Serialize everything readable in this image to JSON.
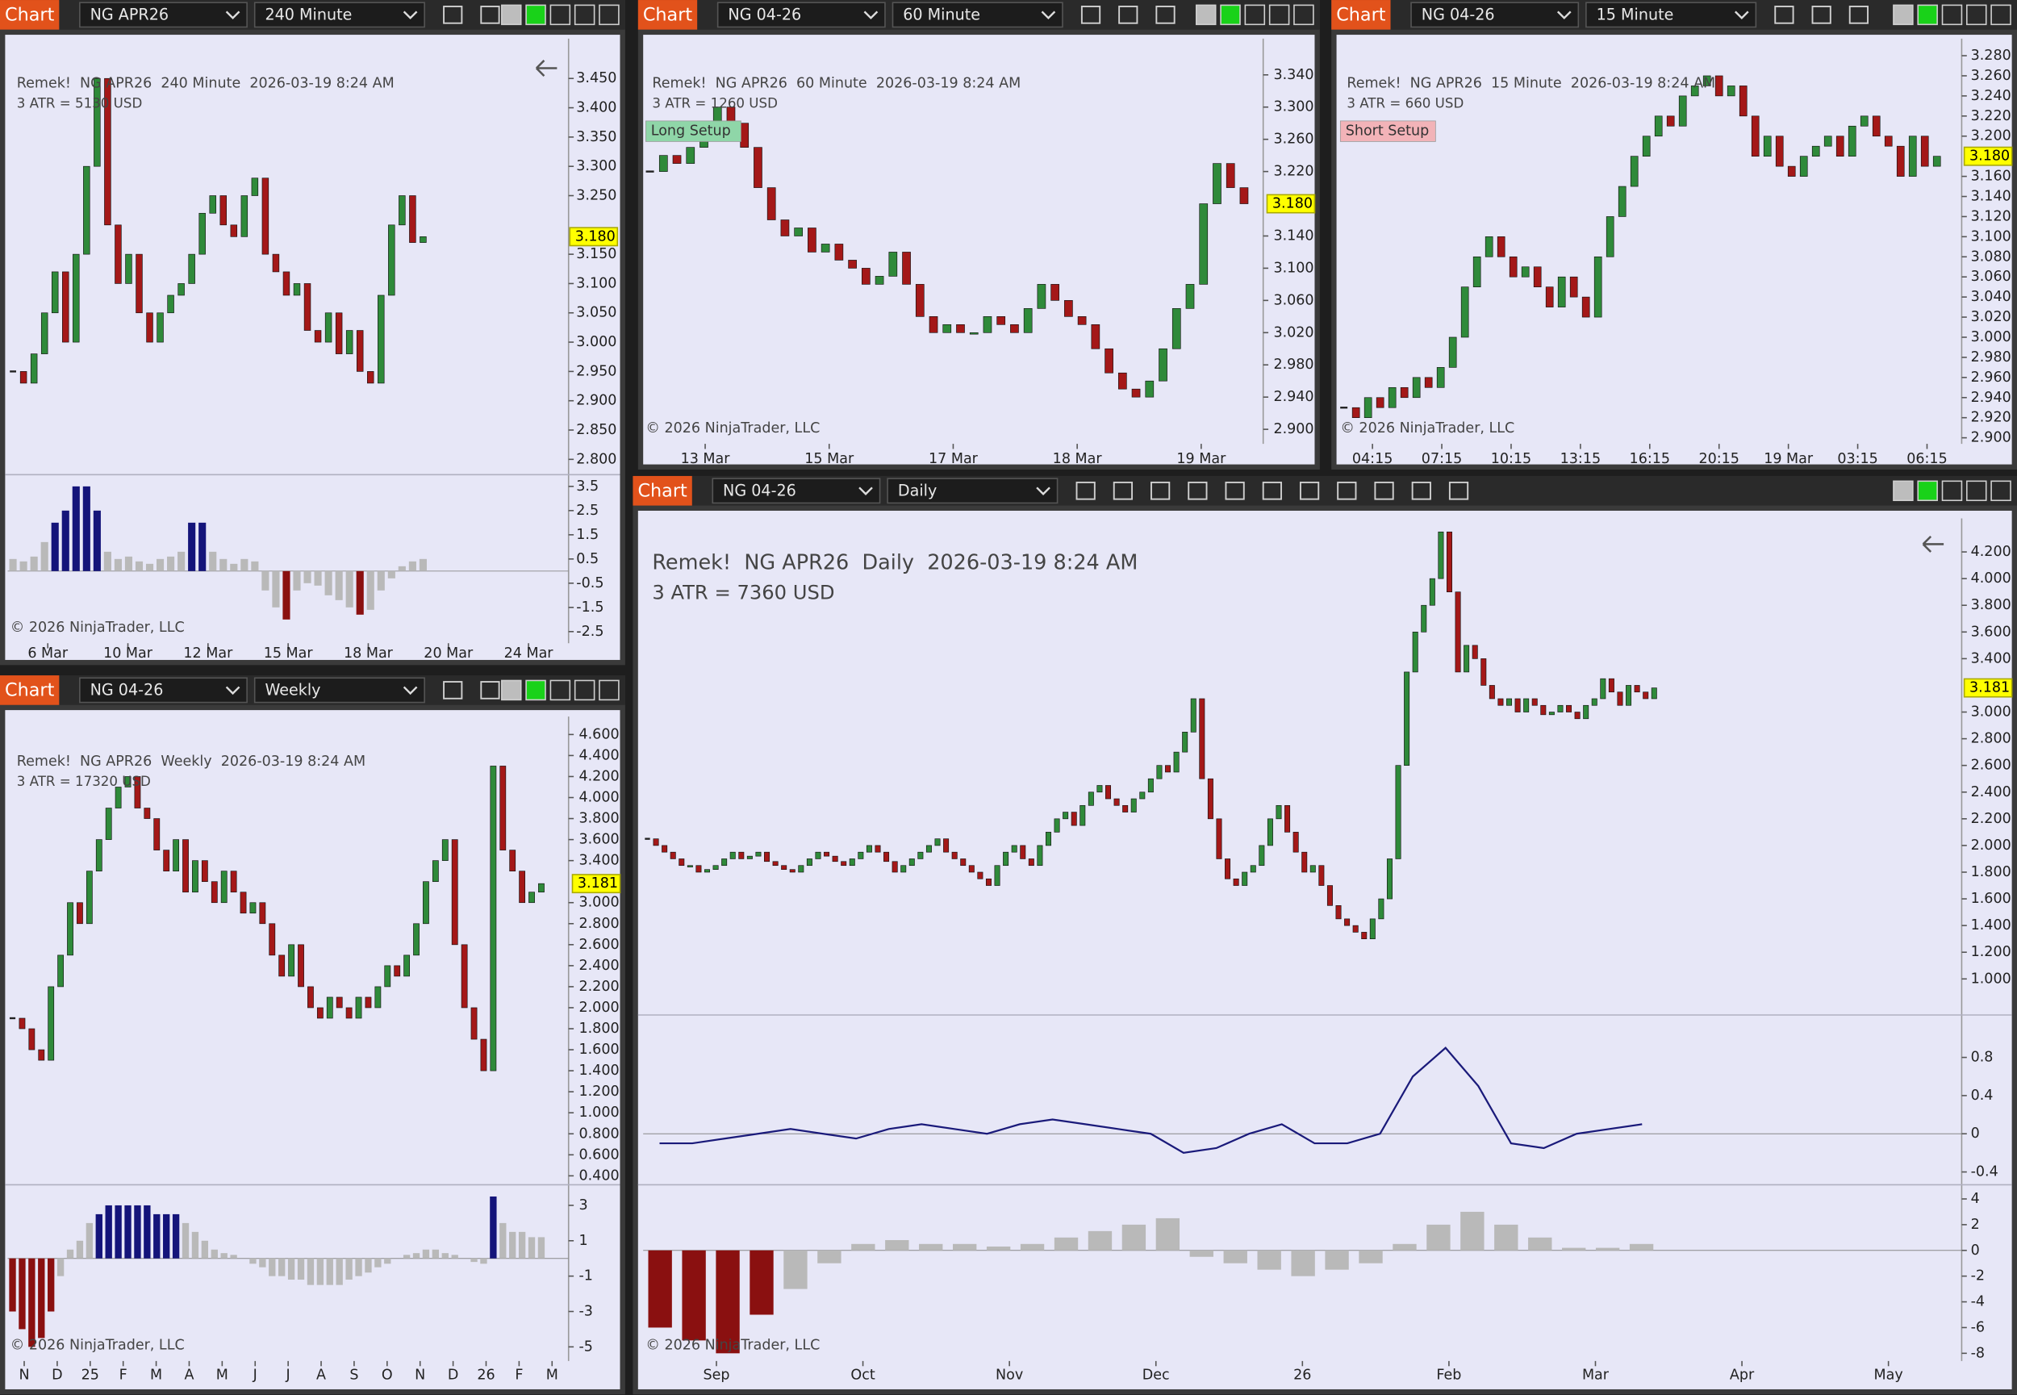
{
  "panels": [
    {
      "toolbar": {
        "label": "Chart",
        "instrument": "NG APR26",
        "interval": "240 Minute"
      },
      "header": "Remek!  NG APR26  240 Minute  2026-03-19 8:24 AM",
      "atr": "3 ATR = 5130 USD",
      "ylim": [
        2.776,
        3.518
      ],
      "yticks": [
        {
          "value": 3.45,
          "label": "3.450"
        },
        {
          "value": 3.4,
          "label": "3.400"
        },
        {
          "value": 3.35,
          "label": "3.350"
        },
        {
          "value": 3.3,
          "label": "3.300"
        },
        {
          "value": 3.25,
          "label": "3.250"
        },
        {
          "value": 3.15,
          "label": "3.150"
        },
        {
          "value": 3.1,
          "label": "3.100"
        },
        {
          "value": 3.05,
          "label": "3.050"
        },
        {
          "value": 3.0,
          "label": "3.000"
        },
        {
          "value": 2.95,
          "label": "2.950"
        },
        {
          "value": 2.9,
          "label": "2.900"
        },
        {
          "value": 2.85,
          "label": "2.850"
        },
        {
          "value": 2.8,
          "label": "2.800"
        }
      ],
      "last": {
        "value": 3.18,
        "label": "3.180"
      },
      "closes": [
        2.95,
        2.93,
        2.98,
        3.05,
        3.12,
        3.0,
        3.15,
        3.3,
        3.45,
        3.2,
        3.1,
        3.15,
        3.05,
        3.0,
        3.05,
        3.08,
        3.1,
        3.15,
        3.22,
        3.25,
        3.2,
        3.18,
        3.25,
        3.28,
        3.15,
        3.12,
        3.08,
        3.1,
        3.02,
        3.0,
        3.05,
        2.98,
        3.02,
        2.95,
        2.93,
        3.08,
        3.2,
        3.25,
        3.17,
        3.18
      ],
      "subs": [
        {
          "type": "hist",
          "ylim": [
            -2.98,
            3.93
          ],
          "yticks": [
            3.5,
            2.5,
            1.5,
            0.5,
            -0.5,
            -1.5,
            -2.5
          ],
          "values": [
            0.5,
            0.4,
            0.6,
            1.2,
            2.0,
            2.5,
            3.5,
            3.5,
            2.5,
            0.8,
            0.5,
            0.6,
            0.4,
            0.3,
            0.5,
            0.6,
            0.8,
            2.0,
            2.0,
            0.8,
            0.5,
            0.3,
            0.5,
            0.4,
            -0.8,
            -1.5,
            -2.0,
            -0.8,
            -0.5,
            -0.6,
            -1.0,
            -1.2,
            -1.5,
            -1.8,
            -1.6,
            -0.8,
            -0.3,
            0.2,
            0.4,
            0.5
          ]
        }
      ],
      "xlabels": [
        "6 Mar",
        "10 Mar",
        "12 Mar",
        "15 Mar",
        "18 Mar",
        "20 Mar",
        "24 Mar"
      ],
      "copyright": "© 2026 NinjaTrader, LLC"
    },
    {
      "toolbar": {
        "label": "Chart",
        "instrument": "NG 04-26",
        "interval": "60 Minute"
      },
      "header": "Remek!  NG APR26  60 Minute  2026-03-19 8:24 AM",
      "atr": "3 ATR = 1260 USD",
      "setup": {
        "text": "Long Setup",
        "color": "#8fd6a8"
      },
      "ylim": [
        2.882,
        3.385
      ],
      "yticks": [
        {
          "value": 3.34,
          "label": "3.340"
        },
        {
          "value": 3.3,
          "label": "3.300"
        },
        {
          "value": 3.26,
          "label": "3.260"
        },
        {
          "value": 3.22,
          "label": "3.220"
        },
        {
          "value": 3.14,
          "label": "3.140"
        },
        {
          "value": 3.1,
          "label": "3.100"
        },
        {
          "value": 3.06,
          "label": "3.060"
        },
        {
          "value": 3.02,
          "label": "3.020"
        },
        {
          "value": 2.98,
          "label": "2.980"
        },
        {
          "value": 2.94,
          "label": "2.940"
        },
        {
          "value": 2.9,
          "label": "2.900"
        }
      ],
      "last": {
        "value": 3.18,
        "label": "3.180"
      },
      "closes": [
        3.22,
        3.24,
        3.23,
        3.25,
        3.27,
        3.3,
        3.28,
        3.25,
        3.2,
        3.16,
        3.14,
        3.15,
        3.12,
        3.13,
        3.11,
        3.1,
        3.08,
        3.09,
        3.12,
        3.08,
        3.04,
        3.02,
        3.03,
        3.02,
        3.02,
        3.04,
        3.03,
        3.02,
        3.05,
        3.08,
        3.06,
        3.04,
        3.03,
        3.0,
        2.97,
        2.95,
        2.94,
        2.96,
        3.0,
        3.05,
        3.08,
        3.18,
        3.23,
        3.2,
        3.18
      ],
      "subs": [],
      "xlabels": [
        "13 Mar",
        "15 Mar",
        "17 Mar",
        "18 Mar",
        "19 Mar"
      ],
      "copyright": "© 2026 NinjaTrader, LLC"
    },
    {
      "toolbar": {
        "label": "Chart",
        "instrument": "NG 04-26",
        "interval": "15 Minute"
      },
      "header": "Remek!  NG APR26  15 Minute  2026-03-19 8:24 AM",
      "atr": "3 ATR = 660 USD",
      "setup": {
        "text": "Short Setup",
        "color": "#f2b3b8"
      },
      "ylim": [
        2.894,
        3.297
      ],
      "yticks": [
        {
          "value": 3.28,
          "label": "3.280"
        },
        {
          "value": 3.26,
          "label": "3.260"
        },
        {
          "value": 3.24,
          "label": "3.240"
        },
        {
          "value": 3.22,
          "label": "3.220"
        },
        {
          "value": 3.2,
          "label": "3.200"
        },
        {
          "value": 3.16,
          "label": "3.160"
        },
        {
          "value": 3.14,
          "label": "3.140"
        },
        {
          "value": 3.12,
          "label": "3.120"
        },
        {
          "value": 3.1,
          "label": "3.100"
        },
        {
          "value": 3.08,
          "label": "3.080"
        },
        {
          "value": 3.06,
          "label": "3.060"
        },
        {
          "value": 3.04,
          "label": "3.040"
        },
        {
          "value": 3.02,
          "label": "3.020"
        },
        {
          "value": 3.0,
          "label": "3.000"
        },
        {
          "value": 2.98,
          "label": "2.980"
        },
        {
          "value": 2.96,
          "label": "2.960"
        },
        {
          "value": 2.94,
          "label": "2.940"
        },
        {
          "value": 2.92,
          "label": "2.920"
        },
        {
          "value": 2.9,
          "label": "2.900"
        }
      ],
      "last": {
        "value": 3.18,
        "label": "3.180"
      },
      "closes": [
        2.93,
        2.92,
        2.94,
        2.93,
        2.95,
        2.94,
        2.96,
        2.95,
        2.97,
        3.0,
        3.05,
        3.08,
        3.1,
        3.08,
        3.06,
        3.07,
        3.05,
        3.03,
        3.06,
        3.04,
        3.02,
        3.08,
        3.12,
        3.15,
        3.18,
        3.2,
        3.22,
        3.21,
        3.24,
        3.25,
        3.26,
        3.24,
        3.25,
        3.22,
        3.18,
        3.2,
        3.17,
        3.16,
        3.18,
        3.19,
        3.2,
        3.18,
        3.21,
        3.22,
        3.2,
        3.19,
        3.16,
        3.2,
        3.17,
        3.18
      ],
      "subs": [],
      "xlabels": [
        "04:15",
        "07:15",
        "10:15",
        "13:15",
        "16:15",
        "20:15",
        "19 Mar",
        "03:15",
        "06:15"
      ],
      "copyright": "© 2026 NinjaTrader, LLC"
    },
    {
      "toolbar": {
        "label": "Chart",
        "instrument": "NG 04-26",
        "interval": "Weekly"
      },
      "header": "Remek!  NG APR26  Weekly  2026-03-19 8:24 AM",
      "atr": "3 ATR = 17320 USD",
      "ylim": [
        0.327,
        4.771
      ],
      "yticks": [
        {
          "value": 4.6,
          "label": "4.600"
        },
        {
          "value": 4.4,
          "label": "4.400"
        },
        {
          "value": 4.2,
          "label": "4.200"
        },
        {
          "value": 4.0,
          "label": "4.000"
        },
        {
          "value": 3.8,
          "label": "3.800"
        },
        {
          "value": 3.6,
          "label": "3.600"
        },
        {
          "value": 3.4,
          "label": "3.400"
        },
        {
          "value": 3.0,
          "label": "3.000"
        },
        {
          "value": 2.8,
          "label": "2.800"
        },
        {
          "value": 2.6,
          "label": "2.600"
        },
        {
          "value": 2.4,
          "label": "2.400"
        },
        {
          "value": 2.2,
          "label": "2.200"
        },
        {
          "value": 2.0,
          "label": "2.000"
        },
        {
          "value": 1.8,
          "label": "1.800"
        },
        {
          "value": 1.6,
          "label": "1.600"
        },
        {
          "value": 1.4,
          "label": "1.400"
        },
        {
          "value": 1.2,
          "label": "1.200"
        },
        {
          "value": 1.0,
          "label": "1.000"
        },
        {
          "value": 0.8,
          "label": "0.800"
        },
        {
          "value": 0.6,
          "label": "0.600"
        },
        {
          "value": 0.4,
          "label": "0.400"
        }
      ],
      "last": {
        "value": 3.181,
        "label": "3.181"
      },
      "closes": [
        1.9,
        1.8,
        1.6,
        1.5,
        2.2,
        2.5,
        3.0,
        2.8,
        3.3,
        3.6,
        3.9,
        4.1,
        4.2,
        3.9,
        3.8,
        3.5,
        3.3,
        3.6,
        3.1,
        3.4,
        3.2,
        3.0,
        3.3,
        3.1,
        2.9,
        3.0,
        2.8,
        2.5,
        2.3,
        2.6,
        2.2,
        2.0,
        1.9,
        2.1,
        2.0,
        1.9,
        2.1,
        2.0,
        2.2,
        2.4,
        2.3,
        2.5,
        2.8,
        3.2,
        3.4,
        3.6,
        2.6,
        2.0,
        1.7,
        1.4,
        4.3,
        3.5,
        3.3,
        3.0,
        3.1,
        3.181
      ],
      "subs": [
        {
          "type": "hist",
          "ylim": [
            -5.8,
            4.09
          ],
          "yticks": [
            3,
            1,
            -1,
            -3,
            -5
          ],
          "values": [
            -3,
            -4,
            -5,
            -4.5,
            -3,
            -1,
            0.5,
            1,
            2,
            2.5,
            3,
            3,
            3,
            3,
            3,
            2.5,
            2.5,
            2.5,
            2,
            1.5,
            1,
            0.5,
            0.3,
            0.2,
            0,
            -0.3,
            -0.5,
            -1,
            -1,
            -1.2,
            -1.2,
            -1.5,
            -1.5,
            -1.5,
            -1.5,
            -1.2,
            -1,
            -0.8,
            -0.5,
            -0.3,
            0,
            0.2,
            0.3,
            0.5,
            0.5,
            0.3,
            0.2,
            0,
            -0.2,
            -0.3,
            3.5,
            2,
            1.5,
            1.5,
            1.2,
            1.2
          ]
        }
      ],
      "xlabels": [
        "N",
        "D",
        "25",
        "F",
        "M",
        "A",
        "M",
        "J",
        "J",
        "A",
        "S",
        "O",
        "N",
        "D",
        "26",
        "F",
        "M"
      ],
      "copyright": "© 2026 NinjaTrader, LLC"
    },
    {
      "toolbar": {
        "label": "Chart",
        "instrument": "NG 04-26",
        "interval": "Daily"
      },
      "header": "Remek!  NG APR26  Daily  2026-03-19 8:24 AM",
      "atr": "3 ATR = 7360 USD",
      "ylim": [
        0.749,
        4.451
      ],
      "yticks": [
        {
          "value": 4.2,
          "label": "4.200"
        },
        {
          "value": 4.0,
          "label": "4.000"
        },
        {
          "value": 3.8,
          "label": "3.800"
        },
        {
          "value": 3.6,
          "label": "3.600"
        },
        {
          "value": 3.4,
          "label": "3.400"
        },
        {
          "value": 3.0,
          "label": "3.000"
        },
        {
          "value": 2.8,
          "label": "2.800"
        },
        {
          "value": 2.6,
          "label": "2.600"
        },
        {
          "value": 2.4,
          "label": "2.400"
        },
        {
          "value": 2.2,
          "label": "2.200"
        },
        {
          "value": 2.0,
          "label": "2.000"
        },
        {
          "value": 1.8,
          "label": "1.800"
        },
        {
          "value": 1.6,
          "label": "1.600"
        },
        {
          "value": 1.4,
          "label": "1.400"
        },
        {
          "value": 1.2,
          "label": "1.200"
        },
        {
          "value": 1.0,
          "label": "1.000"
        }
      ],
      "last": {
        "value": 3.181,
        "label": "3.181"
      },
      "closes": [
        2.05,
        2.0,
        1.95,
        1.9,
        1.85,
        1.85,
        1.8,
        1.82,
        1.85,
        1.9,
        1.95,
        1.9,
        1.92,
        1.95,
        1.88,
        1.85,
        1.82,
        1.8,
        1.85,
        1.9,
        1.95,
        1.92,
        1.88,
        1.85,
        1.9,
        1.95,
        2.0,
        1.95,
        1.88,
        1.8,
        1.85,
        1.9,
        1.95,
        2.0,
        2.05,
        1.95,
        1.9,
        1.85,
        1.8,
        1.75,
        1.7,
        1.85,
        1.95,
        2.0,
        1.9,
        1.85,
        2.0,
        2.1,
        2.2,
        2.25,
        2.15,
        2.3,
        2.4,
        2.45,
        2.35,
        2.3,
        2.25,
        2.35,
        2.4,
        2.5,
        2.6,
        2.55,
        2.7,
        2.85,
        3.1,
        2.5,
        2.2,
        1.9,
        1.75,
        1.7,
        1.8,
        1.85,
        2.0,
        2.2,
        2.3,
        2.1,
        1.95,
        1.8,
        1.85,
        1.7,
        1.55,
        1.45,
        1.4,
        1.35,
        1.3,
        1.45,
        1.6,
        1.9,
        2.6,
        3.3,
        3.6,
        3.8,
        4.0,
        4.35,
        3.9,
        3.3,
        3.5,
        3.4,
        3.2,
        3.1,
        3.05,
        3.1,
        3.0,
        3.1,
        3.05,
        2.98,
        3.0,
        3.05,
        3.0,
        2.95,
        3.05,
        3.1,
        3.25,
        3.15,
        3.05,
        3.2,
        3.15,
        3.1,
        3.181
      ],
      "subs": [
        {
          "type": "line",
          "ylim": [
            -0.494,
            1.231
          ],
          "yticks": [
            0.8,
            0.4,
            0,
            -0.4
          ],
          "values": [
            -0.1,
            -0.1,
            -0.05,
            0,
            0.05,
            0.0,
            -0.05,
            0.05,
            0.1,
            0.05,
            0,
            0.1,
            0.15,
            0.1,
            0.05,
            0.0,
            -0.2,
            -0.15,
            0,
            0.1,
            -0.1,
            -0.1,
            0,
            0.6,
            0.9,
            0.5,
            -0.1,
            -0.15,
            0,
            0.05,
            0.1
          ]
        },
        {
          "type": "hist",
          "ylim": [
            -8.6,
            5
          ],
          "yticks": [
            4,
            2,
            0,
            -2,
            -4,
            -6,
            -8
          ],
          "values": [
            -6,
            -7,
            -8,
            -5,
            -3,
            -1,
            0.5,
            0.8,
            0.5,
            0.5,
            0.3,
            0.5,
            1,
            1.5,
            2,
            2.5,
            -0.5,
            -1,
            -1.5,
            -2,
            -1.5,
            -1,
            0.5,
            2,
            3,
            2,
            1,
            0.2,
            0.2,
            0.5
          ]
        }
      ],
      "xlabels": [
        "Sep",
        "Oct",
        "Nov",
        "Dec",
        "26",
        "Feb",
        "Mar",
        "Apr",
        "May"
      ],
      "copyright": "© 2026 NinjaTrader, LLC"
    }
  ]
}
